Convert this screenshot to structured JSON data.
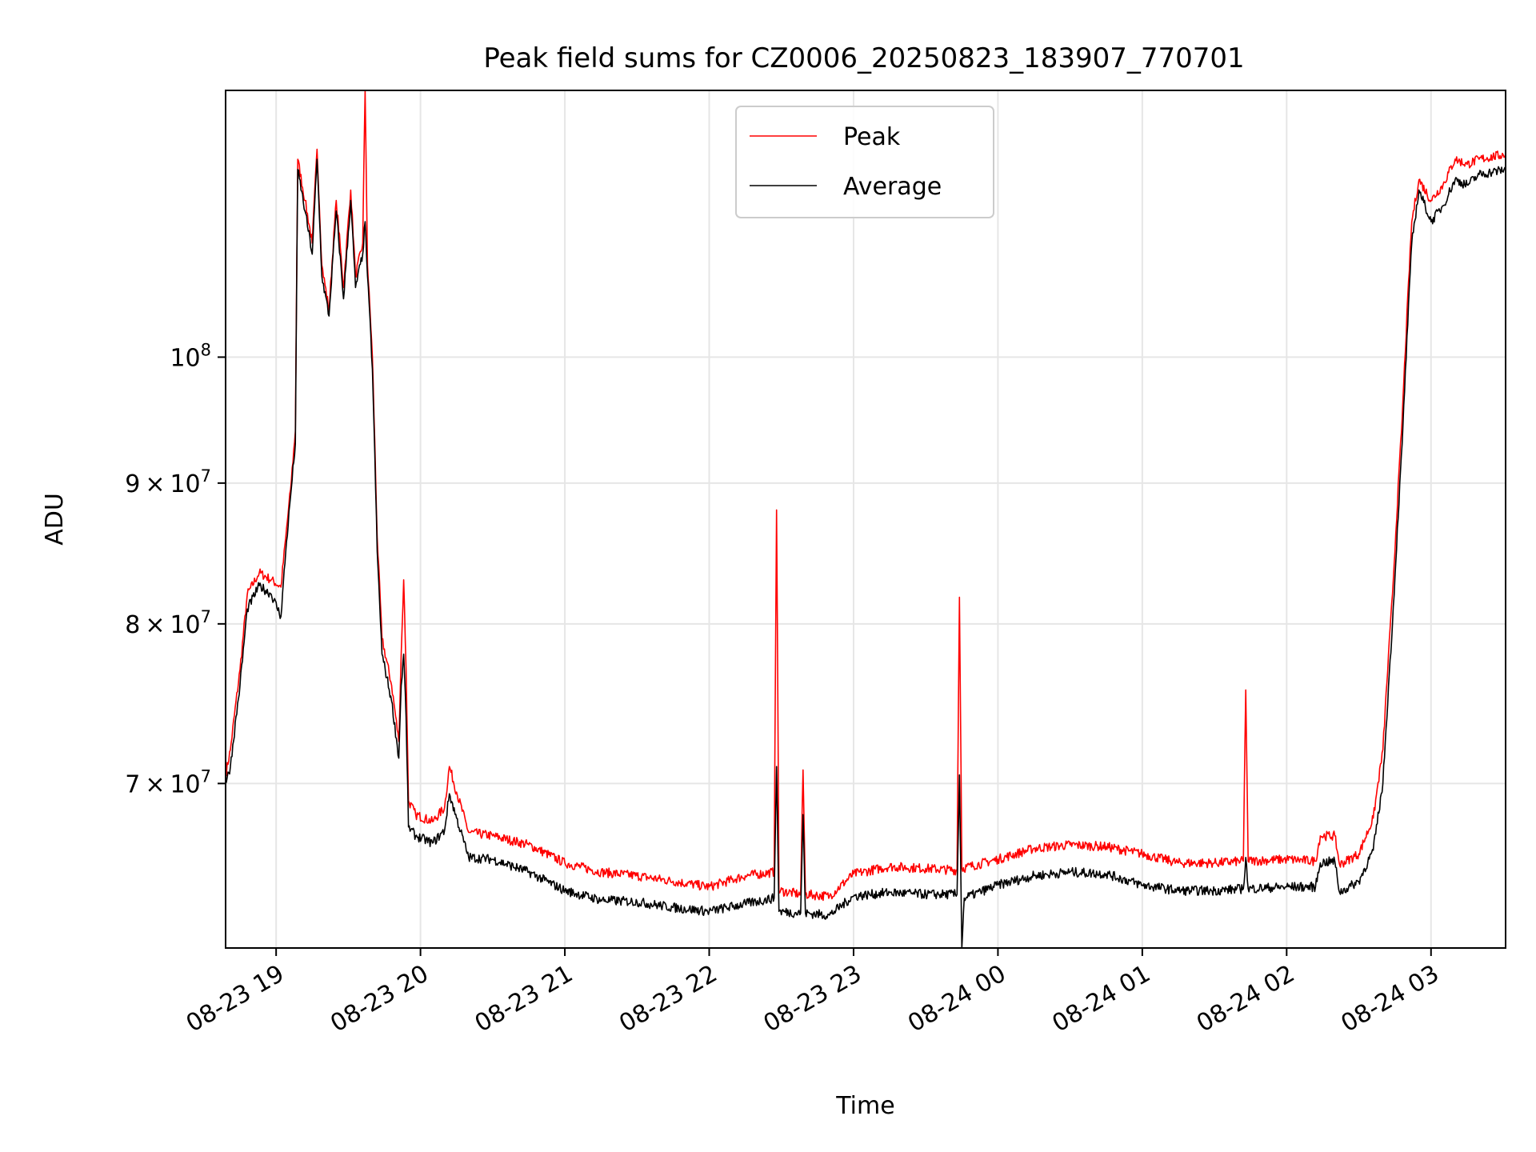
{
  "chart_data": {
    "type": "line",
    "title": "Peak field sums for CZ0006_20250823_183907_770701",
    "xlabel": "Time",
    "ylabel": "ADU",
    "yscale": "log",
    "grid": true,
    "legend_position": "upper center",
    "xlim": [
      "2025-08-23 18:39",
      "2025-08-24 03:31"
    ],
    "ylim": [
      61000000,
      125000000
    ],
    "x_ticks": [
      {
        "label": "08-23 19",
        "value": "2025-08-23 19:00"
      },
      {
        "label": "08-23 20",
        "value": "2025-08-23 20:00"
      },
      {
        "label": "08-23 21",
        "value": "2025-08-23 21:00"
      },
      {
        "label": "08-23 22",
        "value": "2025-08-23 22:00"
      },
      {
        "label": "08-23 23",
        "value": "2025-08-23 23:00"
      },
      {
        "label": "08-24 00",
        "value": "2025-08-24 00:00"
      },
      {
        "label": "08-24 01",
        "value": "2025-08-24 01:00"
      },
      {
        "label": "08-24 02",
        "value": "2025-08-24 02:00"
      },
      {
        "label": "08-24 03",
        "value": "2025-08-24 03:00"
      }
    ],
    "y_ticks": [
      {
        "mantissa": "7",
        "times": "×",
        "base": "10",
        "exp": "7",
        "value": 70000000
      },
      {
        "mantissa": "8",
        "times": "×",
        "base": "10",
        "exp": "7",
        "value": 80000000
      },
      {
        "mantissa": "9",
        "times": "×",
        "base": "10",
        "exp": "7",
        "value": 90000000
      },
      {
        "mantissa": "",
        "times": "",
        "base": "10",
        "exp": "8",
        "value": 100000000
      }
    ],
    "series": [
      {
        "name": "Peak",
        "color": "#ff0000",
        "points": [
          [
            "2025-08-23 18:39",
            70500000
          ],
          [
            "2025-08-23 18:41",
            72000000
          ],
          [
            "2025-08-23 18:45",
            77000000
          ],
          [
            "2025-08-23 18:48",
            82000000
          ],
          [
            "2025-08-23 18:53",
            83500000
          ],
          [
            "2025-08-23 18:58",
            83000000
          ],
          [
            "2025-08-23 19:02",
            82500000
          ],
          [
            "2025-08-23 19:04",
            86000000
          ],
          [
            "2025-08-23 19:06",
            89500000
          ],
          [
            "2025-08-23 19:08",
            94000000
          ],
          [
            "2025-08-23 19:09",
            118000000
          ],
          [
            "2025-08-23 19:12",
            114000000
          ],
          [
            "2025-08-23 19:15",
            110000000
          ],
          [
            "2025-08-23 19:17",
            119000000
          ],
          [
            "2025-08-23 19:19",
            108000000
          ],
          [
            "2025-08-23 19:22",
            104000000
          ],
          [
            "2025-08-23 19:25",
            114000000
          ],
          [
            "2025-08-23 19:28",
            106000000
          ],
          [
            "2025-08-23 19:31",
            115000000
          ],
          [
            "2025-08-23 19:33",
            107000000
          ],
          [
            "2025-08-23 19:36",
            110000000
          ],
          [
            "2025-08-23 19:37",
            125000000
          ],
          [
            "2025-08-23 19:38",
            108000000
          ],
          [
            "2025-08-23 19:40",
            100000000
          ],
          [
            "2025-08-23 19:42",
            86000000
          ],
          [
            "2025-08-23 19:44",
            79000000
          ],
          [
            "2025-08-23 19:48",
            76000000
          ],
          [
            "2025-08-23 19:51",
            72500000
          ],
          [
            "2025-08-23 19:52",
            78000000
          ],
          [
            "2025-08-23 19:53",
            83000000
          ],
          [
            "2025-08-23 19:54",
            77000000
          ],
          [
            "2025-08-23 19:55",
            69000000
          ],
          [
            "2025-08-23 19:58",
            68200000
          ],
          [
            "2025-08-23 20:05",
            67800000
          ],
          [
            "2025-08-23 20:10",
            68600000
          ],
          [
            "2025-08-23 20:12",
            71000000
          ],
          [
            "2025-08-23 20:15",
            69500000
          ],
          [
            "2025-08-23 20:20",
            67200000
          ],
          [
            "2025-08-23 20:30",
            67000000
          ],
          [
            "2025-08-23 20:45",
            66500000
          ],
          [
            "2025-08-23 21:00",
            65500000
          ],
          [
            "2025-08-23 21:15",
            65000000
          ],
          [
            "2025-08-23 21:30",
            64800000
          ],
          [
            "2025-08-23 21:45",
            64500000
          ],
          [
            "2025-08-23 22:00",
            64200000
          ],
          [
            "2025-08-23 22:15",
            64800000
          ],
          [
            "2025-08-23 22:27",
            65000000
          ],
          [
            "2025-08-23 22:28",
            88000000
          ],
          [
            "2025-08-23 22:29",
            64000000
          ],
          [
            "2025-08-23 22:38",
            63800000
          ],
          [
            "2025-08-23 22:39",
            70800000
          ],
          [
            "2025-08-23 22:40",
            63800000
          ],
          [
            "2025-08-23 22:50",
            63700000
          ],
          [
            "2025-08-23 23:00",
            64900000
          ],
          [
            "2025-08-23 23:15",
            65300000
          ],
          [
            "2025-08-23 23:30",
            65200000
          ],
          [
            "2025-08-23 23:43",
            65100000
          ],
          [
            "2025-08-23 23:44",
            81800000
          ],
          [
            "2025-08-23 23:45",
            65200000
          ],
          [
            "2025-08-24 00:00",
            65700000
          ],
          [
            "2025-08-24 00:15",
            66300000
          ],
          [
            "2025-08-24 00:30",
            66500000
          ],
          [
            "2025-08-24 00:45",
            66400000
          ],
          [
            "2025-08-24 01:00",
            66000000
          ],
          [
            "2025-08-24 01:15",
            65500000
          ],
          [
            "2025-08-24 01:30",
            65500000
          ],
          [
            "2025-08-24 01:42",
            65600000
          ],
          [
            "2025-08-24 01:43",
            75700000
          ],
          [
            "2025-08-24 01:44",
            65600000
          ],
          [
            "2025-08-24 02:00",
            65700000
          ],
          [
            "2025-08-24 02:12",
            65600000
          ],
          [
            "2025-08-24 02:14",
            67000000
          ],
          [
            "2025-08-24 02:20",
            67000000
          ],
          [
            "2025-08-24 02:22",
            65400000
          ],
          [
            "2025-08-24 02:30",
            66000000
          ],
          [
            "2025-08-24 02:36",
            68000000
          ],
          [
            "2025-08-24 02:40",
            72000000
          ],
          [
            "2025-08-24 02:44",
            82000000
          ],
          [
            "2025-08-24 02:48",
            95000000
          ],
          [
            "2025-08-24 02:52",
            112000000
          ],
          [
            "2025-08-24 02:55",
            116000000
          ],
          [
            "2025-08-24 03:00",
            114000000
          ],
          [
            "2025-08-24 03:05",
            115500000
          ],
          [
            "2025-08-24 03:10",
            118000000
          ],
          [
            "2025-08-24 03:15",
            117500000
          ],
          [
            "2025-08-24 03:20",
            118000000
          ],
          [
            "2025-08-24 03:31",
            118500000
          ]
        ]
      },
      {
        "name": "Average",
        "color": "#000000",
        "points": [
          [
            "2025-08-23 18:39",
            70000000
          ],
          [
            "2025-08-23 18:41",
            71000000
          ],
          [
            "2025-08-23 18:45",
            76000000
          ],
          [
            "2025-08-23 18:48",
            81000000
          ],
          [
            "2025-08-23 18:53",
            82600000
          ],
          [
            "2025-08-23 18:58",
            82000000
          ],
          [
            "2025-08-23 19:02",
            80500000
          ],
          [
            "2025-08-23 19:04",
            85000000
          ],
          [
            "2025-08-23 19:06",
            89000000
          ],
          [
            "2025-08-23 19:08",
            93000000
          ],
          [
            "2025-08-23 19:09",
            117000000
          ],
          [
            "2025-08-23 19:12",
            113000000
          ],
          [
            "2025-08-23 19:15",
            109000000
          ],
          [
            "2025-08-23 19:17",
            118000000
          ],
          [
            "2025-08-23 19:19",
            107000000
          ],
          [
            "2025-08-23 19:22",
            103500000
          ],
          [
            "2025-08-23 19:25",
            113000000
          ],
          [
            "2025-08-23 19:28",
            105000000
          ],
          [
            "2025-08-23 19:31",
            114000000
          ],
          [
            "2025-08-23 19:33",
            106000000
          ],
          [
            "2025-08-23 19:36",
            109000000
          ],
          [
            "2025-08-23 19:37",
            112000000
          ],
          [
            "2025-08-23 19:38",
            107000000
          ],
          [
            "2025-08-23 19:40",
            99000000
          ],
          [
            "2025-08-23 19:42",
            85000000
          ],
          [
            "2025-08-23 19:44",
            78000000
          ],
          [
            "2025-08-23 19:48",
            75000000
          ],
          [
            "2025-08-23 19:51",
            71500000
          ],
          [
            "2025-08-23 19:52",
            76000000
          ],
          [
            "2025-08-23 19:53",
            78000000
          ],
          [
            "2025-08-23 19:54",
            74000000
          ],
          [
            "2025-08-23 19:55",
            67500000
          ],
          [
            "2025-08-23 19:58",
            67000000
          ],
          [
            "2025-08-23 20:05",
            66600000
          ],
          [
            "2025-08-23 20:10",
            67300000
          ],
          [
            "2025-08-23 20:12",
            69400000
          ],
          [
            "2025-08-23 20:15",
            68000000
          ],
          [
            "2025-08-23 20:20",
            65800000
          ],
          [
            "2025-08-23 20:30",
            65700000
          ],
          [
            "2025-08-23 20:45",
            65000000
          ],
          [
            "2025-08-23 21:00",
            64000000
          ],
          [
            "2025-08-23 21:15",
            63500000
          ],
          [
            "2025-08-23 21:30",
            63400000
          ],
          [
            "2025-08-23 21:45",
            63100000
          ],
          [
            "2025-08-23 22:00",
            62900000
          ],
          [
            "2025-08-23 22:15",
            63300000
          ],
          [
            "2025-08-23 22:27",
            63600000
          ],
          [
            "2025-08-23 22:28",
            71000000
          ],
          [
            "2025-08-23 22:29",
            62900000
          ],
          [
            "2025-08-23 22:38",
            62800000
          ],
          [
            "2025-08-23 22:39",
            68200000
          ],
          [
            "2025-08-23 22:40",
            62800000
          ],
          [
            "2025-08-23 22:50",
            62700000
          ],
          [
            "2025-08-23 23:00",
            63700000
          ],
          [
            "2025-08-23 23:15",
            63900000
          ],
          [
            "2025-08-23 23:30",
            63800000
          ],
          [
            "2025-08-23 23:43",
            63800000
          ],
          [
            "2025-08-23 23:44",
            70500000
          ],
          [
            "2025-08-23 23:45",
            61000000
          ],
          [
            "2025-08-23 23:46",
            63600000
          ],
          [
            "2025-08-24 00:00",
            64300000
          ],
          [
            "2025-08-24 00:15",
            64800000
          ],
          [
            "2025-08-24 00:30",
            65000000
          ],
          [
            "2025-08-24 00:45",
            64900000
          ],
          [
            "2025-08-24 01:00",
            64300000
          ],
          [
            "2025-08-24 01:15",
            64000000
          ],
          [
            "2025-08-24 01:30",
            64000000
          ],
          [
            "2025-08-24 01:42",
            64100000
          ],
          [
            "2025-08-24 01:43",
            65800000
          ],
          [
            "2025-08-24 01:44",
            64100000
          ],
          [
            "2025-08-24 02:00",
            64200000
          ],
          [
            "2025-08-24 02:12",
            64200000
          ],
          [
            "2025-08-24 02:14",
            65500000
          ],
          [
            "2025-08-24 02:20",
            65600000
          ],
          [
            "2025-08-24 02:22",
            63900000
          ],
          [
            "2025-08-24 02:30",
            64500000
          ],
          [
            "2025-08-24 02:36",
            66200000
          ],
          [
            "2025-08-24 02:40",
            70000000
          ],
          [
            "2025-08-24 02:44",
            80000000
          ],
          [
            "2025-08-24 02:48",
            93000000
          ],
          [
            "2025-08-24 02:52",
            110000000
          ],
          [
            "2025-08-24 02:55",
            115000000
          ],
          [
            "2025-08-24 03:00",
            112000000
          ],
          [
            "2025-08-24 03:05",
            113500000
          ],
          [
            "2025-08-24 03:10",
            116000000
          ],
          [
            "2025-08-24 03:15",
            115500000
          ],
          [
            "2025-08-24 03:20",
            116500000
          ],
          [
            "2025-08-24 03:31",
            117000000
          ]
        ]
      }
    ]
  }
}
